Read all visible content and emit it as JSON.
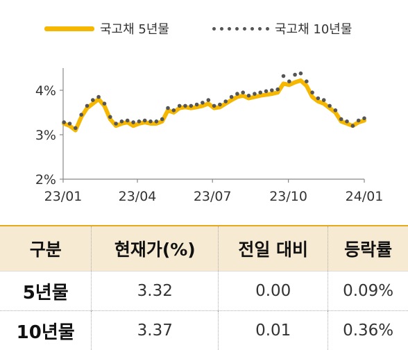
{
  "legend": {
    "series1": "국고채 5년물",
    "series2": "국고채 10년물"
  },
  "colors": {
    "series1": "#f6b700",
    "series2": "#555555",
    "axis": "#888888",
    "header_bg": "#f7ead3",
    "header_border": "#e7a91c"
  },
  "chart_data": {
    "type": "line",
    "x_ticks": [
      "23/01",
      "23/04",
      "23/07",
      "23/10",
      "24/01"
    ],
    "y_ticks": [
      "2%",
      "3%",
      "4%"
    ],
    "ylim": [
      2,
      4.5
    ],
    "grid": false,
    "legend_position": "top",
    "series": [
      {
        "name": "국고채 5년물",
        "style": "line",
        "x": [
          "2023-01-02",
          "2023-01-09",
          "2023-01-16",
          "2023-01-23",
          "2023-01-30",
          "2023-02-06",
          "2023-02-13",
          "2023-02-20",
          "2023-02-27",
          "2023-03-06",
          "2023-03-13",
          "2023-03-20",
          "2023-03-27",
          "2023-04-03",
          "2023-04-10",
          "2023-04-17",
          "2023-04-24",
          "2023-05-01",
          "2023-05-08",
          "2023-05-15",
          "2023-05-22",
          "2023-05-29",
          "2023-06-05",
          "2023-06-12",
          "2023-06-19",
          "2023-06-26",
          "2023-07-03",
          "2023-07-10",
          "2023-07-17",
          "2023-07-24",
          "2023-07-31",
          "2023-08-07",
          "2023-08-14",
          "2023-08-21",
          "2023-08-28",
          "2023-09-04",
          "2023-09-11",
          "2023-09-18",
          "2023-09-25",
          "2023-10-02",
          "2023-10-09",
          "2023-10-16",
          "2023-10-23",
          "2023-10-30",
          "2023-11-06",
          "2023-11-13",
          "2023-11-20",
          "2023-11-27",
          "2023-12-04",
          "2023-12-11",
          "2023-12-18",
          "2023-12-25",
          "2024-01-01"
        ],
        "values": [
          3.25,
          3.2,
          3.1,
          3.4,
          3.6,
          3.7,
          3.8,
          3.65,
          3.35,
          3.2,
          3.25,
          3.28,
          3.2,
          3.25,
          3.28,
          3.25,
          3.25,
          3.3,
          3.55,
          3.5,
          3.6,
          3.62,
          3.6,
          3.62,
          3.65,
          3.7,
          3.6,
          3.62,
          3.7,
          3.78,
          3.85,
          3.88,
          3.82,
          3.85,
          3.88,
          3.9,
          3.92,
          3.95,
          4.15,
          4.12,
          4.18,
          4.22,
          4.1,
          3.85,
          3.75,
          3.7,
          3.6,
          3.5,
          3.3,
          3.25,
          3.2,
          3.28,
          3.32
        ]
      },
      {
        "name": "국고채 10년물",
        "style": "dotted",
        "x": [
          "2023-01-02",
          "2023-01-09",
          "2023-01-16",
          "2023-01-23",
          "2023-01-30",
          "2023-02-06",
          "2023-02-13",
          "2023-02-20",
          "2023-02-27",
          "2023-03-06",
          "2023-03-13",
          "2023-03-20",
          "2023-03-27",
          "2023-04-03",
          "2023-04-10",
          "2023-04-17",
          "2023-04-24",
          "2023-05-01",
          "2023-05-08",
          "2023-05-15",
          "2023-05-22",
          "2023-05-29",
          "2023-06-05",
          "2023-06-12",
          "2023-06-19",
          "2023-06-26",
          "2023-07-03",
          "2023-07-10",
          "2023-07-17",
          "2023-07-24",
          "2023-07-31",
          "2023-08-07",
          "2023-08-14",
          "2023-08-21",
          "2023-08-28",
          "2023-09-04",
          "2023-09-11",
          "2023-09-18",
          "2023-09-25",
          "2023-10-02",
          "2023-10-09",
          "2023-10-16",
          "2023-10-23",
          "2023-10-30",
          "2023-11-06",
          "2023-11-13",
          "2023-11-20",
          "2023-11-27",
          "2023-12-04",
          "2023-12-11",
          "2023-12-18",
          "2023-12-25",
          "2024-01-01"
        ],
        "values": [
          3.28,
          3.25,
          3.15,
          3.45,
          3.65,
          3.78,
          3.85,
          3.7,
          3.4,
          3.25,
          3.3,
          3.32,
          3.28,
          3.3,
          3.32,
          3.3,
          3.3,
          3.35,
          3.6,
          3.55,
          3.65,
          3.65,
          3.65,
          3.68,
          3.72,
          3.78,
          3.65,
          3.68,
          3.75,
          3.85,
          3.92,
          3.95,
          3.88,
          3.92,
          3.95,
          3.98,
          4.0,
          4.02,
          4.32,
          4.2,
          4.35,
          4.38,
          4.2,
          3.95,
          3.82,
          3.78,
          3.65,
          3.55,
          3.35,
          3.3,
          3.2,
          3.32,
          3.37
        ]
      }
    ]
  },
  "table": {
    "headers": [
      "구분",
      "현재가(%)",
      "전일 대비",
      "등락률"
    ],
    "rows": [
      [
        "5년물",
        "3.32",
        "0.00",
        "0.09%"
      ],
      [
        "10년물",
        "3.37",
        "0.01",
        "0.36%"
      ]
    ]
  }
}
